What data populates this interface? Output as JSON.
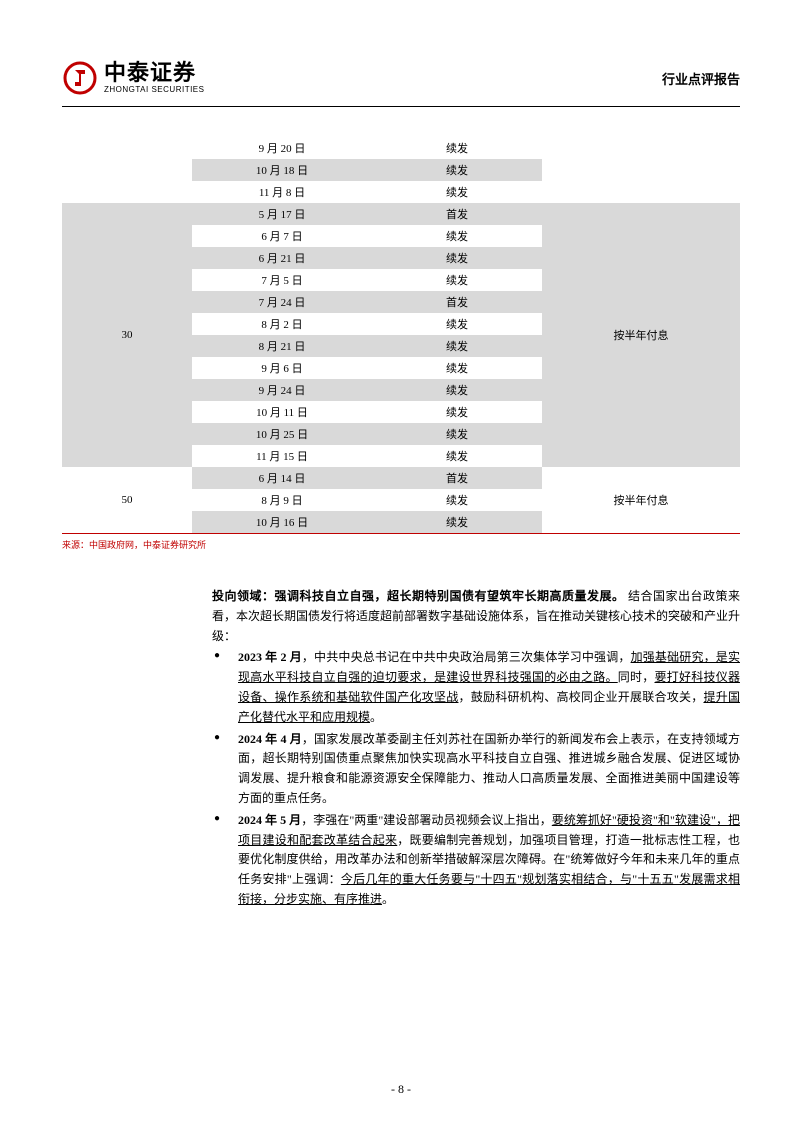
{
  "header": {
    "logo_cn": "中泰证券",
    "logo_en": "ZHONGTAI SECURITIES",
    "doc_type": "行业点评报告"
  },
  "table": {
    "rows_top": [
      {
        "date": "9 月 20 日",
        "type": "续发",
        "alt": false
      },
      {
        "date": "10 月 18 日",
        "type": "续发",
        "alt": true
      },
      {
        "date": "11 月 8 日",
        "type": "续发",
        "alt": false
      }
    ],
    "group30_term": "30",
    "group30_note": "按半年付息",
    "group30_rows": [
      {
        "date": "5 月 17 日",
        "type": "首发",
        "alt": true
      },
      {
        "date": "6 月 7 日",
        "type": "续发",
        "alt": false
      },
      {
        "date": "6 月 21 日",
        "type": "续发",
        "alt": true
      },
      {
        "date": "7 月 5 日",
        "type": "续发",
        "alt": false
      },
      {
        "date": "7 月 24 日",
        "type": "首发",
        "alt": true
      },
      {
        "date": "8 月 2 日",
        "type": "续发",
        "alt": false
      },
      {
        "date": "8 月 21 日",
        "type": "续发",
        "alt": true
      },
      {
        "date": "9 月 6 日",
        "type": "续发",
        "alt": false
      },
      {
        "date": "9 月 24 日",
        "type": "续发",
        "alt": true
      },
      {
        "date": "10 月 11 日",
        "type": "续发",
        "alt": false
      },
      {
        "date": "10 月 25 日",
        "type": "续发",
        "alt": true
      },
      {
        "date": "11 月 15 日",
        "type": "续发",
        "alt": false
      }
    ],
    "group50_term": "50",
    "group50_note": "按半年付息",
    "group50_rows": [
      {
        "date": "6 月 14 日",
        "type": "首发",
        "alt": true
      },
      {
        "date": "8 月 9 日",
        "type": "续发",
        "alt": false
      },
      {
        "date": "10 月 16 日",
        "type": "续发",
        "alt": true
      }
    ],
    "source": "来源：中国政府网，中泰证券研究所"
  },
  "content": {
    "title": "投向领域：强调科技自立自强，超长期特别国债有望筑牢长期高质量发展。",
    "intro": "结合国家出台政策来看，本次超长期国债发行将适度超前部署数字基础设施体系，旨在推动关键核心技术的突破和产业升级：",
    "bullets": [
      {
        "lead": "2023 年 2 月",
        "text1": "，中共中央总书记在中共中央政治局第三次集体学习中强调，",
        "u1": "加强基础研究，是实现高水平科技自立自强的迫切要求，是建设世界科技强国的必由之路。",
        "text2": "同时，",
        "u2": "要打好科技仪器设备、操作系统和基础软件国产化攻坚战",
        "text3": "，鼓励科研机构、高校同企业开展联合攻关，",
        "u3": "提升国产化替代水平和应用规模",
        "text4": "。"
      },
      {
        "lead": "2024 年 4 月",
        "text": "，国家发展改革委副主任刘苏社在国新办举行的新闻发布会上表示，在支持领域方面，超长期特别国债重点聚焦加快实现高水平科技自立自强、推进城乡融合发展、促进区域协调发展、提升粮食和能源资源安全保障能力、推动人口高质量发展、全面推进美丽中国建设等方面的重点任务。"
      },
      {
        "lead": "2024 年 5 月",
        "text1": "，李强在\"两重\"建设部署动员视频会议上指出，",
        "u1": "要统筹抓好\"硬投资\"和\"软建设\"，把项目建设和配套改革结合起来",
        "text2": "，既要编制完善规划，加强项目管理，打造一批标志性工程，也要优化制度供给，用改革办法和创新举措破解深层次障碍。在\"统筹做好今年和未来几年的重点任务安排\"上强调：",
        "u2": "今后几年的重大任务要与\"十四五\"规划落实相结合，与\"十五五\"发展需求相衔接，分步实施、有序推进",
        "text3": "。"
      }
    ]
  },
  "page_number": "- 8 -"
}
